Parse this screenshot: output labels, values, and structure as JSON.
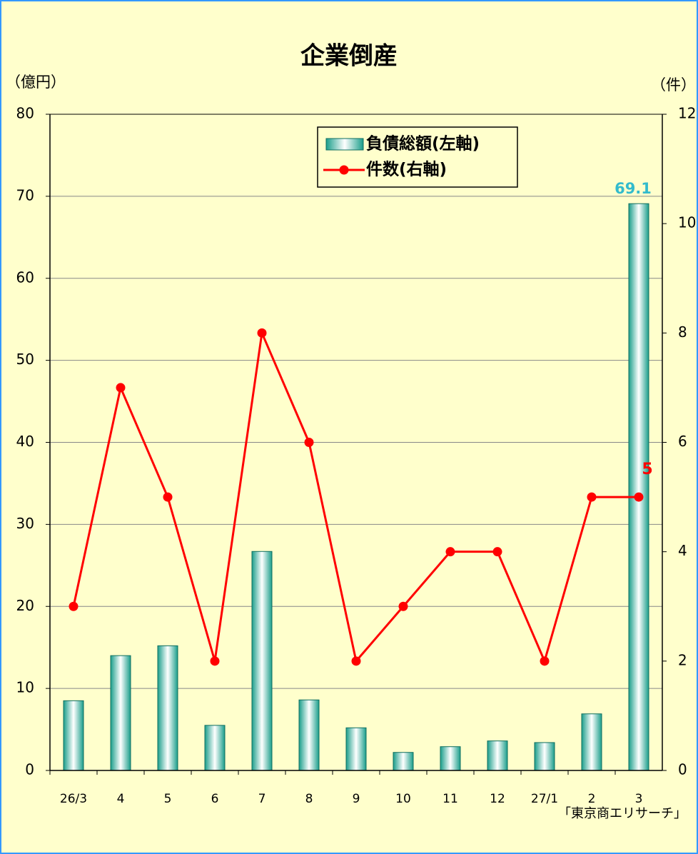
{
  "chart_data": {
    "type": "bar_line",
    "title": "企業倒産",
    "y_label": "（億円）",
    "y2_label": "（件）",
    "source": "「東京商エリサーチ」",
    "categories": [
      "26/3",
      "4",
      "5",
      "6",
      "7",
      "8",
      "9",
      "10",
      "11",
      "12",
      "27/1",
      "2",
      "3"
    ],
    "series": [
      {
        "name": "負債総額(左軸)",
        "type": "bar",
        "color": "#1a9e8a",
        "values": [
          8.5,
          14,
          15.2,
          5.5,
          26.7,
          8.6,
          5.2,
          2.2,
          2.9,
          3.6,
          3.4,
          6.9,
          69.1
        ],
        "value_labels": [
          null,
          null,
          null,
          null,
          null,
          null,
          null,
          null,
          null,
          null,
          null,
          null,
          "69.1"
        ],
        "label_color": "#33bbcc"
      },
      {
        "name": "件数(右軸)",
        "type": "line",
        "axis": "y2",
        "color": "#ff0000",
        "values": [
          3,
          7,
          5,
          2,
          8,
          6,
          2,
          3,
          4,
          4,
          2,
          5,
          5
        ],
        "value_labels": [
          null,
          null,
          null,
          null,
          null,
          null,
          null,
          null,
          null,
          null,
          null,
          null,
          "5"
        ],
        "label_color": "#ff0000"
      }
    ],
    "ylim": [
      0,
      80
    ],
    "yticks": [
      0,
      10,
      20,
      30,
      40,
      50,
      60,
      70,
      80
    ],
    "y2lim": [
      0,
      12
    ],
    "y2ticks": [
      0,
      2,
      4,
      6,
      8,
      10,
      12
    ],
    "grid": true
  }
}
